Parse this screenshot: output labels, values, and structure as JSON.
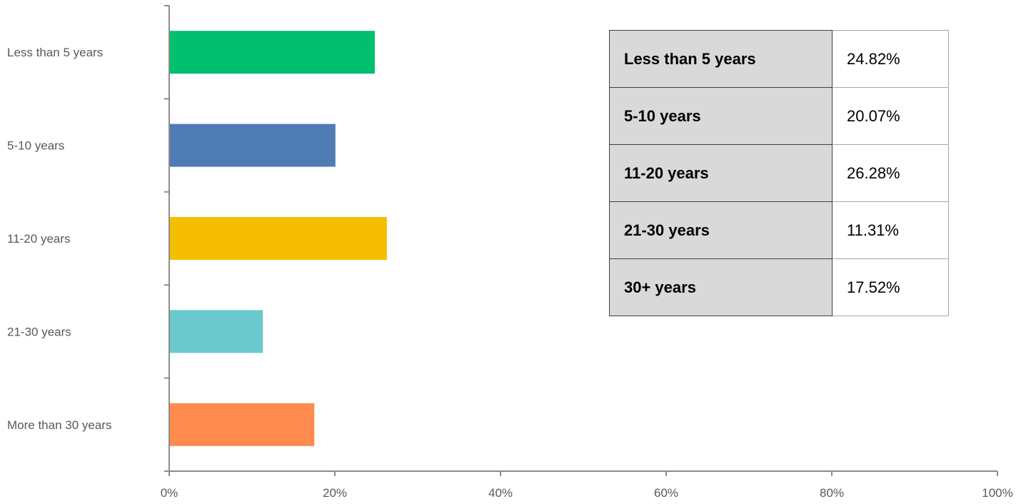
{
  "chart_data": {
    "type": "bar",
    "orientation": "horizontal",
    "categories": [
      "Less than 5 years",
      "5-10 years",
      "11-20 years",
      "21-30 years",
      "More than 30 years"
    ],
    "values": [
      24.82,
      20.07,
      26.28,
      11.31,
      17.52
    ],
    "colors": [
      "#00bf6f",
      "#507cb6",
      "#f6be00",
      "#6bc8cd",
      "#ff8b4f"
    ],
    "xlim": [
      0,
      100
    ],
    "x_ticks": [
      "0%",
      "20%",
      "40%",
      "60%",
      "80%",
      "100%"
    ],
    "title": "",
    "xlabel": "",
    "ylabel": "",
    "grid": false,
    "legend": "none"
  },
  "table": {
    "rows": [
      {
        "label": "Less than 5 years",
        "value": "24.82%"
      },
      {
        "label": "5-10 years",
        "value": "20.07%"
      },
      {
        "label": "11-20 years",
        "value": "26.28%"
      },
      {
        "label": "21-30 years",
        "value": "11.31%"
      },
      {
        "label": "30+ years",
        "value": "17.52%"
      }
    ]
  }
}
